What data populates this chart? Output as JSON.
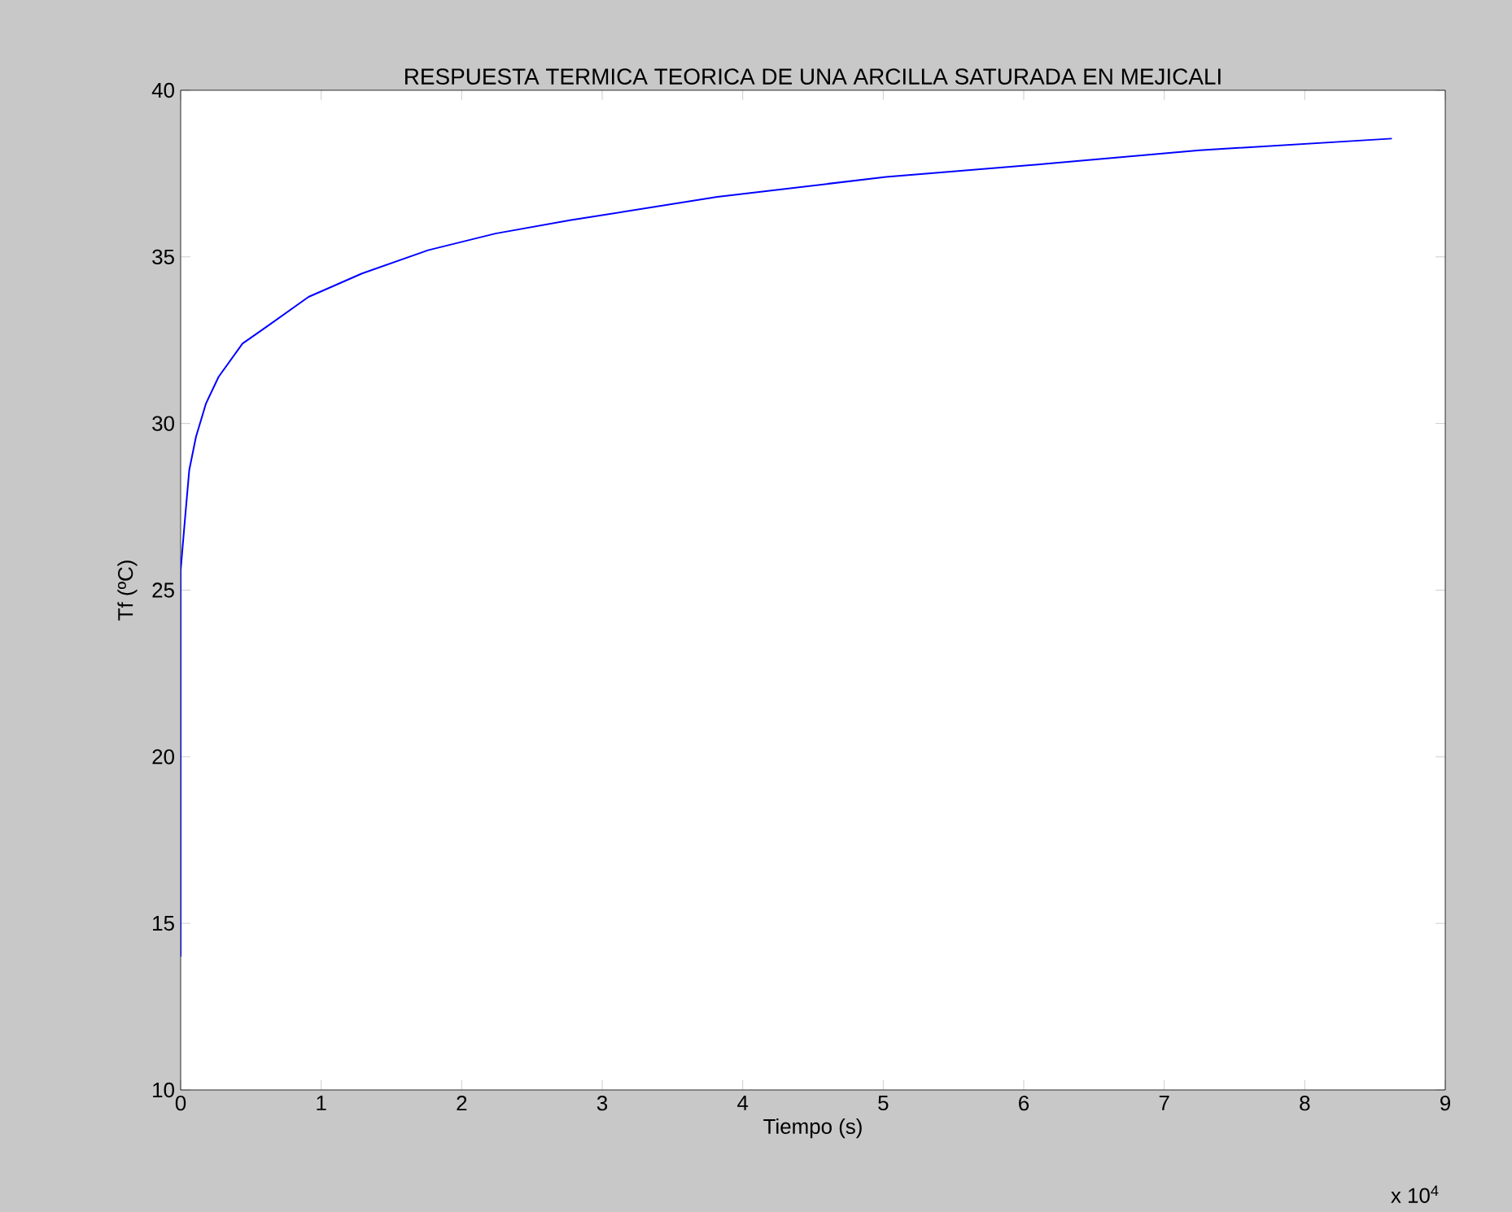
{
  "chart_data": {
    "type": "line",
    "title": "RESPUESTA TERMICA TEORICA DE UNA ARCILLA SATURADA EN MEJICALI",
    "xlabel": "Tiempo (s)",
    "ylabel": "Tf (ºC)",
    "annotations": [
      "x 10$^{4}$"
    ],
    "series": [
      {
        "color": "#0000ff",
        "x": [
          0,
          0,
          0.028,
          0.061,
          0.109,
          0.18,
          0.27,
          0.44,
          0.61,
          0.91,
          1.29,
          1.76,
          2.24,
          2.77,
          3.82,
          5.02,
          6.18,
          7.25,
          8.62
        ],
        "values": [
          14.0,
          25.6,
          27.0,
          28.6,
          29.6,
          30.6,
          31.4,
          32.4,
          32.9,
          33.8,
          34.5,
          35.2,
          35.7,
          36.1,
          36.8,
          37.4,
          37.8,
          38.2,
          38.55
        ]
      }
    ],
    "xlim": [
      0,
      9
    ],
    "ylim": [
      10,
      40
    ],
    "xticks": [
      0,
      1,
      2,
      3,
      4,
      5,
      6,
      7,
      8,
      9
    ],
    "yticks": [
      10,
      15,
      20,
      25,
      30,
      35,
      40
    ],
    "grid": false,
    "marker": "none",
    "line_style": "solid"
  }
}
